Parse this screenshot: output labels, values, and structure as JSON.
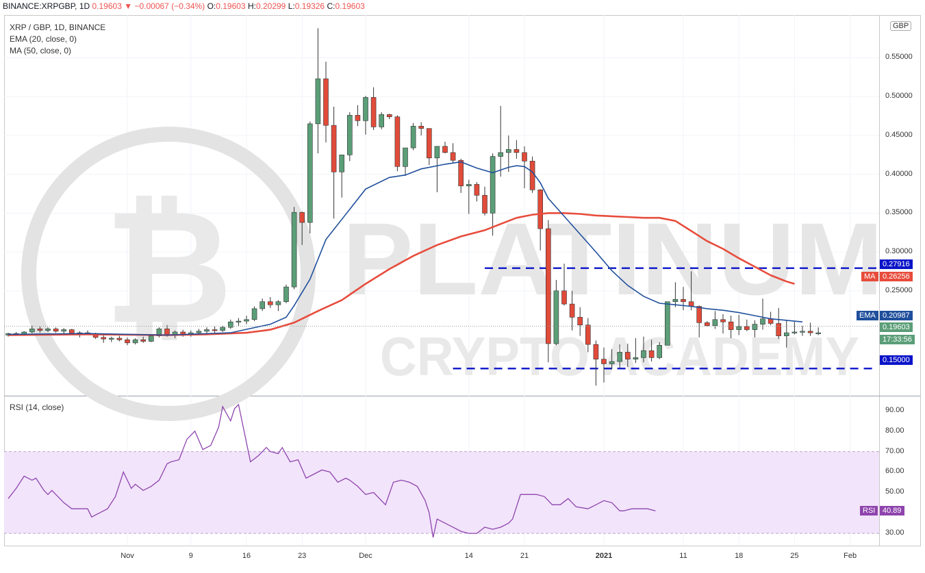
{
  "header": {
    "symbol": "BINANCE:XRPGBP, 1D",
    "price": "0.19603",
    "arrow": "▼",
    "change": "−0.00067 (−0.34%)",
    "o_label": "O:",
    "o": "0.19603",
    "h_label": "H:",
    "h": "0.20299",
    "l_label": "L:",
    "l": "0.19326",
    "c_label": "C:",
    "c": "0.19603"
  },
  "legend": {
    "title": "XRP / GBP, 1D, BINANCE",
    "ema": "EMA (20, close, 0)",
    "ma": "MA (50, close, 0)",
    "rsi": "RSI (14, close)"
  },
  "currency_badge": "GBP",
  "price_axis": {
    "ticks": [
      "0.55000",
      "0.50000",
      "0.45000",
      "0.40000",
      "0.35000",
      "0.30000",
      "0.25000"
    ],
    "tick_values": [
      0.55,
      0.5,
      0.45,
      0.4,
      0.35,
      0.3,
      0.25
    ],
    "range": [
      0.115,
      0.605
    ]
  },
  "rsi_axis": {
    "ticks": [
      "90.00",
      "80.00",
      "70.00",
      "60.00",
      "50.00",
      "30.00"
    ],
    "tick_values": [
      90,
      80,
      70,
      60,
      50,
      30
    ],
    "range": [
      24,
      97
    ],
    "band": [
      30,
      70
    ]
  },
  "x_axis": {
    "labels": [
      "Nov",
      "9",
      "16",
      "23",
      "Dec",
      "14",
      "21",
      "2021",
      "11",
      "18",
      "25",
      "Feb"
    ],
    "label_index": [
      15,
      23,
      30,
      37,
      45,
      58,
      65,
      75,
      85,
      92,
      99,
      106
    ]
  },
  "price_tags": {
    "resistance": "0.27916",
    "ma_label": "MA",
    "ma": "0.26256",
    "ema_label": "EMA",
    "ema": "0.20987",
    "last": "0.19603",
    "countdown": "17:33:56",
    "support": "0.15000"
  },
  "rsi_tag": {
    "label": "RSI",
    "value": "40.89"
  },
  "watermark": {
    "line1": "PLATINUM",
    "line2": "CRYPTO ACADEMY"
  },
  "colors": {
    "up": "#5b9e78",
    "down": "#e14b3a",
    "ema": "#1f4f9c",
    "ma": "#e74c3c",
    "rsi": "#8e44ad",
    "band": "#f2e4fb",
    "level": "#0a14c8"
  },
  "chart_data": [
    {
      "type": "candlestick",
      "title": "XRP / GBP, 1D, BINANCE",
      "x": "daily candles, Oct 18 2020 – Jan 26 2021",
      "levels": [
        0.27916,
        0.15
      ],
      "candles": [
        [
          0.193,
          0.196,
          0.191,
          0.195
        ],
        [
          0.195,
          0.197,
          0.193,
          0.194
        ],
        [
          0.194,
          0.198,
          0.192,
          0.197
        ],
        [
          0.197,
          0.205,
          0.195,
          0.201
        ],
        [
          0.201,
          0.204,
          0.196,
          0.199
        ],
        [
          0.199,
          0.203,
          0.197,
          0.201
        ],
        [
          0.201,
          0.203,
          0.196,
          0.198
        ],
        [
          0.198,
          0.202,
          0.195,
          0.2
        ],
        [
          0.2,
          0.201,
          0.193,
          0.195
        ],
        [
          0.195,
          0.198,
          0.19,
          0.196
        ],
        [
          0.196,
          0.199,
          0.193,
          0.194
        ],
        [
          0.194,
          0.196,
          0.188,
          0.19
        ],
        [
          0.19,
          0.193,
          0.183,
          0.188
        ],
        [
          0.188,
          0.191,
          0.184,
          0.189
        ],
        [
          0.189,
          0.192,
          0.185,
          0.187
        ],
        [
          0.187,
          0.19,
          0.18,
          0.183
        ],
        [
          0.183,
          0.189,
          0.181,
          0.187
        ],
        [
          0.187,
          0.191,
          0.183,
          0.185
        ],
        [
          0.185,
          0.194,
          0.184,
          0.192
        ],
        [
          0.192,
          0.203,
          0.19,
          0.201
        ],
        [
          0.201,
          0.206,
          0.191,
          0.194
        ],
        [
          0.194,
          0.199,
          0.189,
          0.197
        ],
        [
          0.197,
          0.2,
          0.191,
          0.194
        ],
        [
          0.194,
          0.199,
          0.191,
          0.196
        ],
        [
          0.196,
          0.201,
          0.194,
          0.198
        ],
        [
          0.198,
          0.203,
          0.195,
          0.2
        ],
        [
          0.2,
          0.204,
          0.196,
          0.199
        ],
        [
          0.199,
          0.205,
          0.197,
          0.203
        ],
        [
          0.203,
          0.213,
          0.201,
          0.21
        ],
        [
          0.21,
          0.215,
          0.205,
          0.211
        ],
        [
          0.211,
          0.218,
          0.207,
          0.213
        ],
        [
          0.213,
          0.23,
          0.211,
          0.227
        ],
        [
          0.227,
          0.24,
          0.224,
          0.236
        ],
        [
          0.236,
          0.242,
          0.228,
          0.232
        ],
        [
          0.232,
          0.238,
          0.224,
          0.236
        ],
        [
          0.236,
          0.258,
          0.234,
          0.255
        ],
        [
          0.255,
          0.358,
          0.252,
          0.351
        ],
        [
          0.351,
          0.352,
          0.309,
          0.338
        ],
        [
          0.338,
          0.468,
          0.324,
          0.465
        ],
        [
          0.465,
          0.588,
          0.427,
          0.523
        ],
        [
          0.523,
          0.545,
          0.441,
          0.463
        ],
        [
          0.463,
          0.487,
          0.343,
          0.403
        ],
        [
          0.403,
          0.423,
          0.37,
          0.425
        ],
        [
          0.425,
          0.48,
          0.417,
          0.476
        ],
        [
          0.476,
          0.489,
          0.462,
          0.469
        ],
        [
          0.469,
          0.501,
          0.451,
          0.499
        ],
        [
          0.499,
          0.512,
          0.457,
          0.461
        ],
        [
          0.461,
          0.48,
          0.458,
          0.477
        ],
        [
          0.477,
          0.478,
          0.471,
          0.474
        ],
        [
          0.474,
          0.476,
          0.404,
          0.41
        ],
        [
          0.41,
          0.43,
          0.398,
          0.434
        ],
        [
          0.434,
          0.466,
          0.431,
          0.462
        ],
        [
          0.462,
          0.467,
          0.45,
          0.459
        ],
        [
          0.459,
          0.459,
          0.412,
          0.421
        ],
        [
          0.421,
          0.436,
          0.377,
          0.436
        ],
        [
          0.436,
          0.442,
          0.427,
          0.428
        ],
        [
          0.428,
          0.44,
          0.415,
          0.418
        ],
        [
          0.418,
          0.42,
          0.376,
          0.385
        ],
        [
          0.385,
          0.393,
          0.349,
          0.387
        ],
        [
          0.387,
          0.39,
          0.365,
          0.373
        ],
        [
          0.373,
          0.384,
          0.347,
          0.35
        ],
        [
          0.35,
          0.427,
          0.321,
          0.423
        ],
        [
          0.423,
          0.488,
          0.397,
          0.428
        ],
        [
          0.428,
          0.45,
          0.403,
          0.432
        ],
        [
          0.432,
          0.444,
          0.42,
          0.428
        ],
        [
          0.428,
          0.436,
          0.382,
          0.417
        ],
        [
          0.417,
          0.423,
          0.376,
          0.38
        ],
        [
          0.38,
          0.381,
          0.302,
          0.33
        ],
        [
          0.33,
          0.341,
          0.158,
          0.182
        ],
        [
          0.182,
          0.264,
          0.18,
          0.25
        ],
        [
          0.25,
          0.285,
          0.231,
          0.233
        ],
        [
          0.233,
          0.25,
          0.199,
          0.216
        ],
        [
          0.216,
          0.229,
          0.192,
          0.206
        ],
        [
          0.206,
          0.215,
          0.171,
          0.181
        ],
        [
          0.181,
          0.186,
          0.128,
          0.162
        ],
        [
          0.162,
          0.177,
          0.132,
          0.156
        ],
        [
          0.156,
          0.175,
          0.149,
          0.159
        ],
        [
          0.159,
          0.181,
          0.151,
          0.171
        ],
        [
          0.171,
          0.182,
          0.152,
          0.162
        ],
        [
          0.162,
          0.189,
          0.157,
          0.164
        ],
        [
          0.164,
          0.191,
          0.158,
          0.173
        ],
        [
          0.173,
          0.187,
          0.159,
          0.164
        ],
        [
          0.164,
          0.184,
          0.162,
          0.18
        ],
        [
          0.18,
          0.236,
          0.18,
          0.236
        ],
        [
          0.236,
          0.261,
          0.229,
          0.239
        ],
        [
          0.239,
          0.255,
          0.225,
          0.236
        ],
        [
          0.236,
          0.275,
          0.225,
          0.23
        ],
        [
          0.23,
          0.231,
          0.19,
          0.209
        ],
        [
          0.209,
          0.211,
          0.204,
          0.205
        ],
        [
          0.205,
          0.224,
          0.201,
          0.213
        ],
        [
          0.213,
          0.22,
          0.195,
          0.21
        ],
        [
          0.21,
          0.218,
          0.189,
          0.2
        ],
        [
          0.2,
          0.219,
          0.193,
          0.204
        ],
        [
          0.204,
          0.213,
          0.198,
          0.2
        ],
        [
          0.2,
          0.212,
          0.19,
          0.207
        ],
        [
          0.207,
          0.24,
          0.2,
          0.214
        ],
        [
          0.214,
          0.223,
          0.206,
          0.208
        ],
        [
          0.208,
          0.228,
          0.188,
          0.192
        ],
        [
          0.192,
          0.212,
          0.177,
          0.196
        ],
        [
          0.196,
          0.21,
          0.194,
          0.197
        ],
        [
          0.197,
          0.205,
          0.192,
          0.198
        ],
        [
          0.198,
          0.209,
          0.192,
          0.196
        ],
        [
          0.196,
          0.203,
          0.193,
          0.196
        ]
      ],
      "ema": [
        [
          0,
          0.194
        ],
        [
          10,
          0.195
        ],
        [
          20,
          0.193
        ],
        [
          28,
          0.196
        ],
        [
          33,
          0.207
        ],
        [
          35,
          0.216
        ],
        [
          36,
          0.231
        ],
        [
          38,
          0.265
        ],
        [
          40,
          0.316
        ],
        [
          43,
          0.355
        ],
        [
          45,
          0.381
        ],
        [
          48,
          0.396
        ],
        [
          50,
          0.399
        ],
        [
          52,
          0.407
        ],
        [
          55,
          0.413
        ],
        [
          57,
          0.416
        ],
        [
          59,
          0.408
        ],
        [
          61,
          0.402
        ],
        [
          63,
          0.409
        ],
        [
          64,
          0.411
        ],
        [
          65,
          0.41
        ],
        [
          66,
          0.403
        ],
        [
          67,
          0.389
        ],
        [
          68,
          0.369
        ],
        [
          70,
          0.346
        ],
        [
          72,
          0.323
        ],
        [
          74,
          0.3
        ],
        [
          76,
          0.276
        ],
        [
          78,
          0.257
        ],
        [
          80,
          0.243
        ],
        [
          82,
          0.234
        ],
        [
          84,
          0.232
        ],
        [
          86,
          0.23
        ],
        [
          88,
          0.227
        ],
        [
          90,
          0.225
        ],
        [
          92,
          0.222
        ],
        [
          94,
          0.218
        ],
        [
          96,
          0.214
        ],
        [
          98,
          0.212
        ],
        [
          100,
          0.21
        ]
      ],
      "ma": [
        [
          0,
          0.193
        ],
        [
          10,
          0.194
        ],
        [
          20,
          0.193
        ],
        [
          25,
          0.194
        ],
        [
          30,
          0.196
        ],
        [
          33,
          0.2
        ],
        [
          36,
          0.209
        ],
        [
          39,
          0.224
        ],
        [
          42,
          0.238
        ],
        [
          45,
          0.259
        ],
        [
          48,
          0.278
        ],
        [
          51,
          0.295
        ],
        [
          54,
          0.309
        ],
        [
          57,
          0.32
        ],
        [
          60,
          0.328
        ],
        [
          62,
          0.336
        ],
        [
          64,
          0.344
        ],
        [
          66,
          0.348
        ],
        [
          68,
          0.35
        ],
        [
          70,
          0.35
        ],
        [
          72,
          0.349
        ],
        [
          74,
          0.347
        ],
        [
          76,
          0.346
        ],
        [
          78,
          0.345
        ],
        [
          80,
          0.344
        ],
        [
          82,
          0.344
        ],
        [
          84,
          0.34
        ],
        [
          86,
          0.327
        ],
        [
          88,
          0.314
        ],
        [
          90,
          0.304
        ],
        [
          92,
          0.292
        ],
        [
          94,
          0.281
        ],
        [
          96,
          0.27
        ],
        [
          98,
          0.262
        ],
        [
          99,
          0.259
        ]
      ]
    },
    {
      "type": "line",
      "title": "RSI (14, close)",
      "band": [
        30,
        70
      ],
      "points": [
        [
          0,
          47
        ],
        [
          2,
          52
        ],
        [
          4,
          58
        ],
        [
          6,
          56
        ],
        [
          7,
          57
        ],
        [
          9,
          51
        ],
        [
          10,
          49
        ],
        [
          11,
          51
        ],
        [
          12,
          49
        ],
        [
          14,
          45
        ],
        [
          16,
          42
        ],
        [
          18,
          42
        ],
        [
          20,
          42
        ],
        [
          21,
          38
        ],
        [
          23,
          40
        ],
        [
          25,
          42
        ],
        [
          27,
          48
        ],
        [
          29,
          60
        ],
        [
          31,
          52
        ],
        [
          32,
          54
        ],
        [
          34,
          51
        ],
        [
          36,
          53
        ],
        [
          38,
          56
        ],
        [
          40,
          64
        ],
        [
          41,
          65
        ],
        [
          43,
          66
        ],
        [
          45,
          76
        ],
        [
          47,
          80
        ],
        [
          49,
          71
        ],
        [
          51,
          73
        ],
        [
          53,
          82
        ],
        [
          54,
          92
        ],
        [
          56,
          85
        ],
        [
          57,
          91
        ],
        [
          58,
          93
        ],
        [
          61,
          65
        ],
        [
          63,
          68
        ],
        [
          65,
          72
        ],
        [
          66,
          70
        ],
        [
          68,
          69
        ],
        [
          69,
          72
        ],
        [
          71,
          65
        ],
        [
          73,
          66
        ],
        [
          75,
          57
        ],
        [
          77,
          59
        ],
        [
          79,
          61
        ],
        [
          81,
          60
        ],
        [
          83,
          55
        ],
        [
          85,
          57
        ],
        [
          86,
          56
        ],
        [
          88,
          53
        ],
        [
          90,
          49
        ],
        [
          92,
          50
        ],
        [
          95,
          44
        ],
        [
          97,
          55
        ],
        [
          99,
          56
        ],
        [
          101,
          55
        ],
        [
          103,
          53
        ],
        [
          105,
          46
        ],
        [
          106,
          40
        ],
        [
          107,
          28
        ],
        [
          108,
          37
        ],
        [
          110,
          35
        ],
        [
          112,
          33
        ],
        [
          114,
          31
        ],
        [
          116,
          30
        ],
        [
          118,
          30
        ],
        [
          120,
          33
        ],
        [
          122,
          32
        ],
        [
          124,
          33
        ],
        [
          126,
          35
        ],
        [
          127,
          37
        ],
        [
          129,
          49
        ],
        [
          131,
          49
        ],
        [
          133,
          49
        ],
        [
          135,
          48
        ],
        [
          137,
          44
        ],
        [
          139,
          44
        ],
        [
          141,
          47
        ],
        [
          143,
          43
        ],
        [
          146,
          42
        ],
        [
          148,
          44
        ],
        [
          150,
          46
        ],
        [
          152,
          45
        ],
        [
          154,
          41
        ],
        [
          155,
          41
        ],
        [
          157,
          42
        ],
        [
          159,
          42
        ],
        [
          161,
          42
        ],
        [
          163,
          41
        ]
      ],
      "points_x_note": "half-day steps",
      "last": 40.89
    }
  ]
}
